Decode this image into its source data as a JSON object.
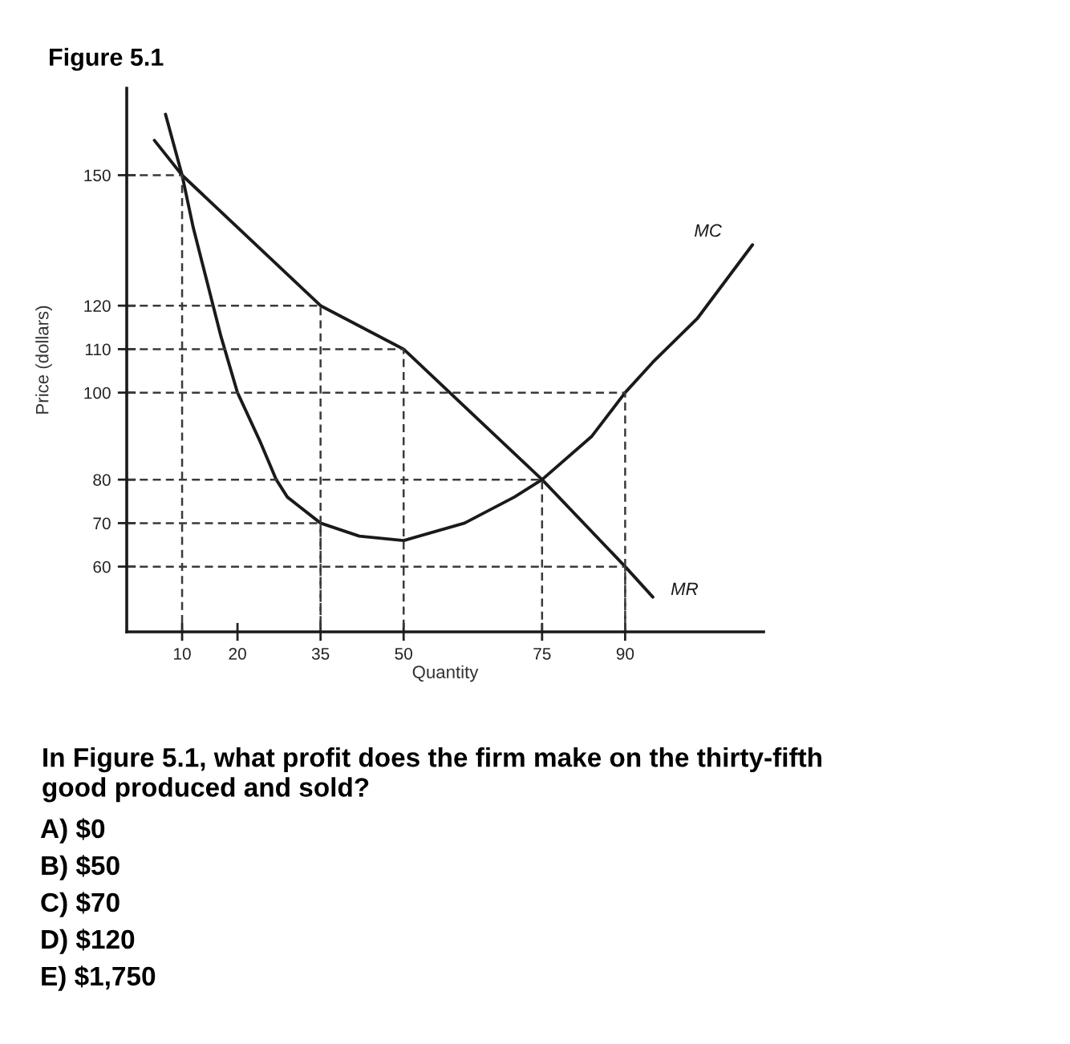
{
  "chart_data": {
    "type": "line",
    "title": "Figure 5.1",
    "xlabel": "Quantity",
    "ylabel": "Price (dollars)",
    "xlim": [
      0,
      115
    ],
    "xticks": [
      10,
      20,
      35,
      50,
      75,
      90
    ],
    "ylim": [
      45,
      170
    ],
    "yticks": [
      60,
      70,
      80,
      100,
      110,
      120,
      150
    ],
    "series": [
      {
        "name": "MC",
        "color": "#1a1a1a",
        "line_style": "solid",
        "x": [
          7,
          10,
          12,
          17,
          20,
          24,
          27,
          29,
          31,
          35,
          42,
          50,
          61,
          70,
          75,
          84,
          90,
          95,
          103,
          113
        ],
        "values": [
          164,
          150,
          138,
          113,
          100,
          89,
          80,
          76,
          74,
          70,
          67,
          66,
          70,
          76,
          80,
          90,
          100,
          107,
          117,
          134
        ]
      },
      {
        "name": "MR",
        "color": "#1a1a1a",
        "line_style": "solid",
        "x": [
          5,
          10,
          35,
          50,
          75,
          90,
          95
        ],
        "values": [
          158,
          150,
          120,
          110,
          80,
          60,
          53
        ]
      },
      {
        "color": "#3a3a3a",
        "line_style": "dashed",
        "x": [
          0,
          10,
          10
        ],
        "values": [
          150,
          150,
          45
        ]
      },
      {
        "color": "#3a3a3a",
        "line_style": "dashed",
        "x": [
          0,
          35,
          35
        ],
        "values": [
          120,
          120,
          45
        ]
      },
      {
        "color": "#3a3a3a",
        "line_style": "dashed",
        "x": [
          0,
          50,
          50
        ],
        "values": [
          110,
          110,
          45
        ]
      },
      {
        "color": "#3a3a3a",
        "line_style": "dashed",
        "x": [
          0,
          90,
          90
        ],
        "values": [
          100,
          100,
          45
        ]
      },
      {
        "color": "#3a3a3a",
        "line_style": "dashed",
        "x": [
          0,
          75,
          75
        ],
        "values": [
          80,
          80,
          45
        ]
      },
      {
        "color": "#3a3a3a",
        "line_style": "dashed",
        "x": [
          0,
          35,
          35
        ],
        "values": [
          70,
          70,
          45
        ]
      },
      {
        "color": "#3a3a3a",
        "line_style": "dashed",
        "x": [
          0,
          90,
          90
        ],
        "values": [
          60,
          60,
          45
        ]
      }
    ],
    "annotations": [
      "In Figure 5.1, what profit does the firm make on the thirty-fifth good produced and sold?",
      "A) $0",
      "B) $50",
      "C) $70",
      "D) $120",
      "E) $1,750"
    ]
  }
}
